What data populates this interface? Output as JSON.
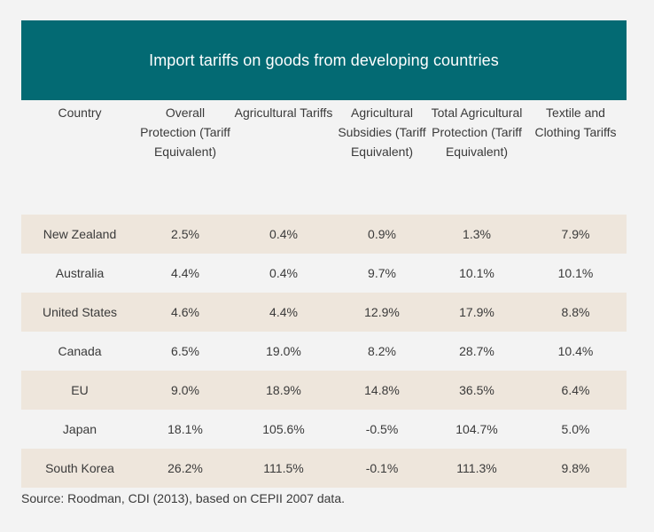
{
  "title": "Import tariffs on goods from developing countries",
  "columns": [
    "Country",
    "Overall Protection (Tariff Equivalent)",
    "Agricultural Tariffs",
    "Agricultural Subsidies (Tariff Equivalent)",
    "Total Agricultural Protection (Tariff Equivalent)",
    "Textile and Clothing Tariffs"
  ],
  "rows": [
    [
      "New Zealand",
      "2.5%",
      "0.4%",
      "0.9%",
      "1.3%",
      "7.9%"
    ],
    [
      "Australia",
      "4.4%",
      "0.4%",
      "9.7%",
      "10.1%",
      "10.1%"
    ],
    [
      "United States",
      "4.6%",
      "4.4%",
      "12.9%",
      "17.9%",
      "8.8%"
    ],
    [
      "Canada",
      "6.5%",
      "19.0%",
      "8.2%",
      "28.7%",
      "10.4%"
    ],
    [
      "EU",
      "9.0%",
      "18.9%",
      "14.8%",
      "36.5%",
      "6.4%"
    ],
    [
      "Japan",
      "18.1%",
      "105.6%",
      "-0.5%",
      "104.7%",
      "5.0%"
    ],
    [
      "South Korea",
      "26.2%",
      "111.5%",
      "-0.1%",
      "111.3%",
      "9.8%"
    ]
  ],
  "source": "Source: Roodman, CDI (2013), based on CEPII 2007 data.",
  "colors": {
    "title_bg": "#036a73",
    "row_shade": "#eee6dc",
    "page_bg": "#f3f3f3"
  }
}
